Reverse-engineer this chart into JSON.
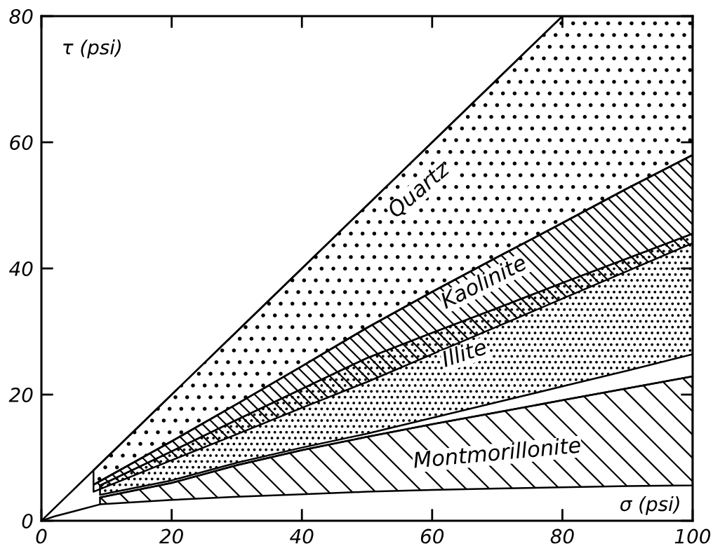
{
  "chart_data": {
    "type": "line",
    "xlabel": "σ (psi)",
    "ylabel": "τ (psi)",
    "xlim": [
      0,
      100
    ],
    "ylim": [
      0,
      80
    ],
    "xticks": [
      0,
      20,
      40,
      60,
      80,
      100
    ],
    "yticks": [
      0,
      20,
      40,
      60,
      80
    ],
    "series": [
      {
        "name": "Quartz",
        "color": "#000000",
        "x": [
          0,
          8,
          20,
          30,
          40,
          50,
          60,
          70,
          80,
          90,
          100
        ],
        "values": [
          0,
          8,
          20,
          30,
          40,
          50,
          60,
          70,
          80,
          80,
          80
        ],
        "lower": [
          null,
          5.7,
          12.6,
          18.5,
          24.5,
          30.6,
          36.3,
          41.8,
          47.2,
          52.7,
          58.0
        ],
        "upper": [
          null,
          8,
          20,
          30,
          40,
          50,
          60,
          70,
          80,
          80,
          80
        ]
      },
      {
        "name": "Kaolinite",
        "color": "#000000",
        "x": [
          8,
          20,
          30,
          40,
          50,
          60,
          70,
          80,
          90,
          100
        ],
        "values": [
          5.7,
          12.6,
          18.5,
          24.5,
          30.6,
          36.3,
          41.8,
          47.2,
          52.7,
          58.0
        ],
        "lower": [
          4.6,
          9.6,
          13.7,
          17.9,
          22.0,
          26.4,
          30.8,
          35.2,
          39.6,
          44.0
        ],
        "upper": [
          5.7,
          12.6,
          18.5,
          24.5,
          30.6,
          36.3,
          41.8,
          47.2,
          52.7,
          58.0
        ]
      },
      {
        "name": "Illite",
        "color": "#000000",
        "x": [
          9,
          20,
          30,
          40,
          50,
          60,
          70,
          80,
          90,
          100
        ],
        "values": [
          5.6,
          11.0,
          16.0,
          20.9,
          25.8,
          29.8,
          33.7,
          37.7,
          41.6,
          45.5
        ],
        "lower": [
          4.1,
          6.4,
          9.2,
          11.6,
          13.8,
          16.3,
          18.8,
          21.3,
          23.8,
          26.4
        ],
        "upper": [
          5.6,
          11.0,
          16.0,
          20.9,
          25.8,
          29.8,
          33.7,
          37.7,
          41.6,
          45.5
        ]
      },
      {
        "name": "Montmorillonite",
        "color": "#000000",
        "x": [
          9,
          20,
          30,
          40,
          50,
          60,
          70,
          80,
          90,
          100
        ],
        "values": [
          3.7,
          6.0,
          8.8,
          11.2,
          13.3,
          15.3,
          17.2,
          19.1,
          21.0,
          22.9
        ],
        "lower": [
          2.6,
          3.3,
          3.8,
          4.2,
          4.6,
          4.9,
          5.1,
          5.3,
          5.5,
          5.6
        ],
        "upper": [
          3.7,
          6.0,
          8.8,
          11.2,
          13.3,
          15.3,
          17.2,
          19.1,
          21.0,
          22.9
        ]
      },
      {
        "color": "#000000",
        "x": [
          0,
          2,
          5,
          9
        ],
        "values": [
          0,
          0.7,
          1.5,
          2.6
        ]
      }
    ]
  }
}
